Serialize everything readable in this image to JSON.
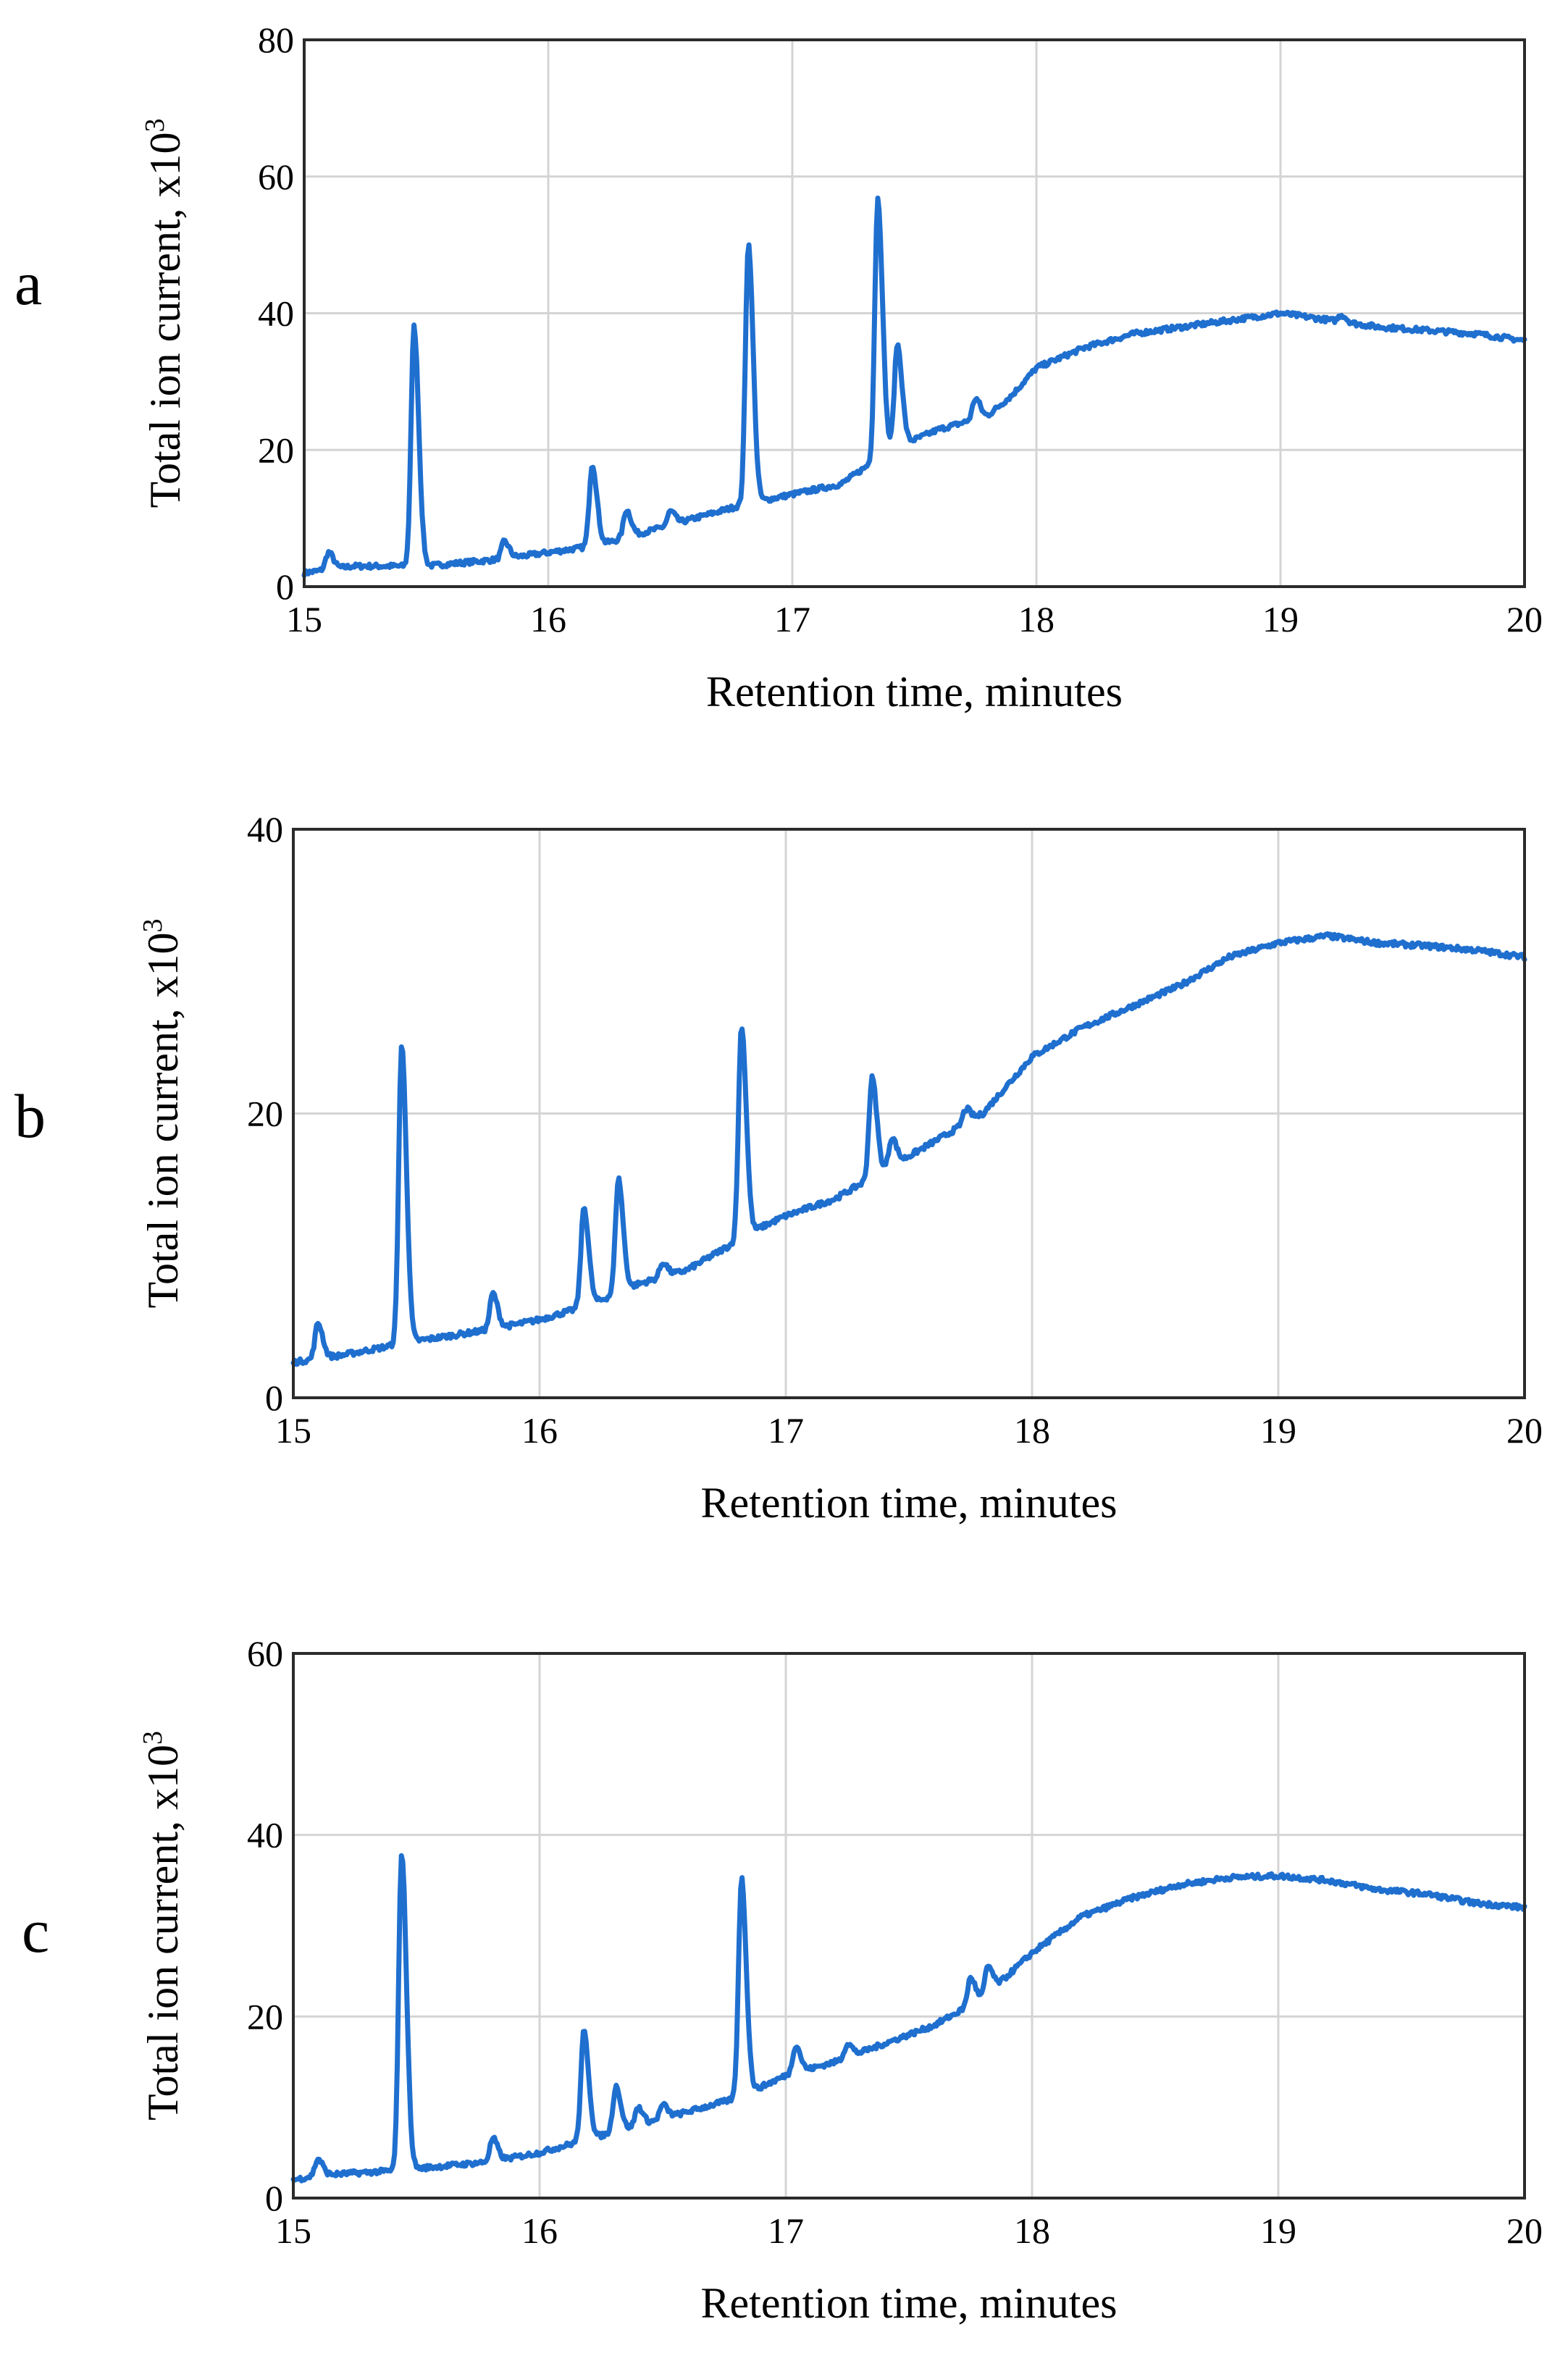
{
  "chart_data": [
    {
      "type": "line",
      "panel_label": "a",
      "xlabel": "Retention time, minutes",
      "ylabel": "Total ion current, x10",
      "ylabel_exponent": "3",
      "xlim": [
        15,
        20
      ],
      "ylim": [
        0,
        80
      ],
      "xticks": [
        15,
        16,
        17,
        18,
        19,
        20
      ],
      "yticks": [
        0,
        20,
        40,
        60,
        80
      ],
      "grid": true,
      "baseline": [
        [
          15,
          2
        ],
        [
          15.2,
          3
        ],
        [
          15.5,
          3
        ],
        [
          15.8,
          4
        ],
        [
          16,
          5
        ],
        [
          16.2,
          6
        ],
        [
          16.4,
          8
        ],
        [
          16.6,
          10
        ],
        [
          16.8,
          12
        ],
        [
          17,
          13.5
        ],
        [
          17.2,
          15
        ],
        [
          17.4,
          20
        ],
        [
          17.6,
          23
        ],
        [
          17.8,
          25
        ],
        [
          17.9,
          28
        ],
        [
          18,
          32
        ],
        [
          18.2,
          35
        ],
        [
          18.4,
          37
        ],
        [
          18.6,
          38
        ],
        [
          18.8,
          39
        ],
        [
          19,
          40
        ],
        [
          19.2,
          39
        ],
        [
          19.4,
          38
        ],
        [
          19.6,
          37.5
        ],
        [
          19.8,
          37
        ],
        [
          20,
          36
        ]
      ],
      "peaks": [
        [
          15.1,
          2.5
        ],
        [
          15.45,
          35
        ],
        [
          15.82,
          2.5
        ],
        [
          16.18,
          12
        ],
        [
          16.32,
          4
        ],
        [
          16.5,
          2
        ],
        [
          16.82,
          38
        ],
        [
          17.35,
          38
        ],
        [
          17.43,
          15
        ],
        [
          17.75,
          3
        ],
        [
          19.25,
          1
        ]
      ]
    },
    {
      "type": "line",
      "panel_label": "b",
      "xlabel": "Retention time, minutes",
      "ylabel": "Total ion current, x10",
      "ylabel_exponent": "3",
      "xlim": [
        15,
        20
      ],
      "ylim": [
        0,
        40
      ],
      "xticks": [
        15,
        16,
        17,
        18,
        19,
        20
      ],
      "yticks": [
        0,
        20,
        40
      ],
      "grid": true,
      "baseline": [
        [
          15,
          2.5
        ],
        [
          15.2,
          3
        ],
        [
          15.5,
          4
        ],
        [
          15.8,
          4.8
        ],
        [
          16,
          5.5
        ],
        [
          16.2,
          6.5
        ],
        [
          16.4,
          8
        ],
        [
          16.6,
          9
        ],
        [
          16.8,
          11
        ],
        [
          16.9,
          12
        ],
        [
          17,
          12.8
        ],
        [
          17.2,
          14
        ],
        [
          17.4,
          16
        ],
        [
          17.6,
          18
        ],
        [
          17.8,
          20
        ],
        [
          18,
          24
        ],
        [
          18.2,
          26
        ],
        [
          18.4,
          27.5
        ],
        [
          18.6,
          29
        ],
        [
          18.8,
          31
        ],
        [
          19,
          32
        ],
        [
          19.2,
          32.5
        ],
        [
          19.4,
          32
        ],
        [
          19.6,
          31.8
        ],
        [
          19.8,
          31.5
        ],
        [
          20,
          31
        ]
      ],
      "peaks": [
        [
          15.1,
          2.5
        ],
        [
          15.44,
          21
        ],
        [
          15.81,
          2.5
        ],
        [
          16.18,
          7
        ],
        [
          16.32,
          8
        ],
        [
          16.5,
          1
        ],
        [
          16.82,
          15
        ],
        [
          17.35,
          7
        ],
        [
          17.43,
          2
        ],
        [
          17.73,
          1
        ]
      ]
    },
    {
      "type": "line",
      "panel_label": "c",
      "xlabel": "Retention time, minutes",
      "ylabel": "Total ion current, x10",
      "ylabel_exponent": "3",
      "xlim": [
        15,
        20
      ],
      "ylim": [
        0,
        60
      ],
      "xticks": [
        15,
        16,
        17,
        18,
        19,
        20
      ],
      "yticks": [
        0,
        20,
        40,
        60
      ],
      "grid": true,
      "baseline": [
        [
          15,
          2
        ],
        [
          15.1,
          2.5
        ],
        [
          15.4,
          3
        ],
        [
          15.6,
          3.5
        ],
        [
          15.8,
          4
        ],
        [
          16,
          5
        ],
        [
          16.2,
          6.5
        ],
        [
          16.4,
          8
        ],
        [
          16.6,
          9.5
        ],
        [
          16.8,
          11
        ],
        [
          17,
          13.5
        ],
        [
          17.2,
          15
        ],
        [
          17.4,
          17
        ],
        [
          17.6,
          19
        ],
        [
          17.8,
          22
        ],
        [
          18,
          27
        ],
        [
          18.2,
          31
        ],
        [
          18.4,
          33
        ],
        [
          18.6,
          34.5
        ],
        [
          18.8,
          35.3
        ],
        [
          19,
          35.5
        ],
        [
          19.2,
          35
        ],
        [
          19.4,
          34
        ],
        [
          19.6,
          33.5
        ],
        [
          19.8,
          32.5
        ],
        [
          20,
          32
        ]
      ],
      "peaks": [
        [
          15.1,
          1.8
        ],
        [
          15.44,
          35
        ],
        [
          15.81,
          2.5
        ],
        [
          16.18,
          12
        ],
        [
          16.31,
          5
        ],
        [
          16.4,
          2
        ],
        [
          16.5,
          1.5
        ],
        [
          16.82,
          24
        ],
        [
          17.04,
          3
        ],
        [
          17.25,
          1.5
        ],
        [
          17.75,
          3
        ],
        [
          17.82,
          3
        ]
      ]
    }
  ]
}
